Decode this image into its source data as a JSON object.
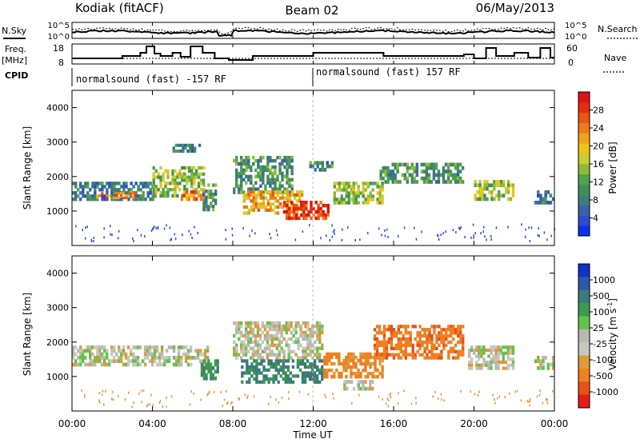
{
  "header": {
    "station": "Kodiak (fitACF)",
    "beam": "Beam 02",
    "date": "06/May/2013"
  },
  "strips": {
    "nsky_label": "N.Sky",
    "nsearch_label": "N.Search",
    "freq_label_1": "Freq.",
    "freq_label_2": "[MHz]",
    "nave_label": "Nave",
    "cpid_label": "CPID",
    "noise_ticks_left": [
      "10^5",
      "10^0"
    ],
    "noise_ticks_right": [
      "10^5",
      "10^0"
    ],
    "freq_ticks": [
      "18",
      "8"
    ],
    "nave_ticks": [
      "60",
      "0"
    ],
    "cpid_segments": [
      {
        "label": "normalsound (fast) -157 RF",
        "start_h": 0,
        "end_h": 12
      },
      {
        "label": "normalsound (fast) 157 RF",
        "start_h": 12,
        "end_h": 24
      }
    ]
  },
  "panels": {
    "yaxis_label": "Slant Range [km]",
    "y_ticks": [
      "1000",
      "2000",
      "3000",
      "4000"
    ],
    "x_ticks": [
      "00:00",
      "04:00",
      "08:00",
      "12:00",
      "16:00",
      "20:00",
      "00:00"
    ],
    "xaxis_label": "Time UT"
  },
  "colorbars": {
    "power": {
      "label": "Power [dB]",
      "ticks": [
        "4",
        "8",
        "12",
        "16",
        "20",
        "24",
        "28"
      ],
      "colors": [
        "#0b2ff0",
        "#2c4bd1",
        "#3a62a8",
        "#3f7b7a",
        "#3f8f5a",
        "#4fa24c",
        "#8dbb3a",
        "#c7cf31",
        "#f0c21c",
        "#f2a31b",
        "#ef7d17",
        "#ec5515",
        "#e82c12",
        "#e0120f"
      ]
    },
    "velocity": {
      "label": "Velocity [m s",
      "label_sup": "-1",
      "label_end": "]",
      "ticks": [
        "1000",
        "500",
        "100",
        "25",
        "-25",
        "-100",
        "-500",
        "-1000"
      ],
      "colors": [
        "#1034c8",
        "#2d5aa8",
        "#3c7a7a",
        "#3d9a4c",
        "#64c24a",
        "#b8b8b0",
        "#c9c8bf",
        "#e09a3a",
        "#ee8020",
        "#e8501a",
        "#e81c12"
      ]
    }
  },
  "chart_data": [
    {
      "type": "heatmap",
      "title": "Power [dB]",
      "xlabel": "Time UT",
      "ylabel": "Slant Range [km]",
      "xlim_hours": [
        0,
        24
      ],
      "ylim_km": [
        0,
        4500
      ],
      "color_range": [
        0,
        30
      ],
      "regions": [
        {
          "t0": 0.0,
          "t1": 4.2,
          "r0": 1300,
          "r1": 1850,
          "value": 8
        },
        {
          "t0": 1.2,
          "t1": 3.2,
          "r0": 1350,
          "r1": 1550,
          "value": 22
        },
        {
          "t0": 4.0,
          "t1": 6.6,
          "r0": 1400,
          "r1": 2300,
          "value": 14
        },
        {
          "t0": 5.4,
          "t1": 6.6,
          "r0": 1300,
          "r1": 1600,
          "value": 22
        },
        {
          "t0": 6.5,
          "t1": 7.2,
          "r0": 1000,
          "r1": 1800,
          "value": 10
        },
        {
          "t0": 5.0,
          "t1": 6.4,
          "r0": 2700,
          "r1": 2950,
          "value": 8
        },
        {
          "t0": 8.0,
          "t1": 11.0,
          "r0": 1500,
          "r1": 2600,
          "value": 10
        },
        {
          "t0": 8.5,
          "t1": 11.5,
          "r0": 900,
          "r1": 1600,
          "value": 20
        },
        {
          "t0": 10.5,
          "t1": 12.8,
          "r0": 750,
          "r1": 1300,
          "value": 27
        },
        {
          "t0": 11.8,
          "t1": 13.0,
          "r0": 2150,
          "r1": 2450,
          "value": 8
        },
        {
          "t0": 13.0,
          "t1": 15.5,
          "r0": 1200,
          "r1": 1850,
          "value": 14
        },
        {
          "t0": 15.3,
          "t1": 19.5,
          "r0": 1800,
          "r1": 2400,
          "value": 10
        },
        {
          "t0": 20.0,
          "t1": 22.0,
          "r0": 1300,
          "r1": 1900,
          "value": 14
        },
        {
          "t0": 23.0,
          "t1": 24.0,
          "r0": 1200,
          "r1": 1600,
          "value": 8
        }
      ]
    },
    {
      "type": "heatmap",
      "title": "Velocity [m s-1]",
      "xlabel": "Time UT",
      "ylabel": "Slant Range [km]",
      "xlim_hours": [
        0,
        24
      ],
      "ylim_km": [
        0,
        4500
      ],
      "color_range": [
        -1000,
        1000
      ],
      "regions": [
        {
          "t0": 0.0,
          "t1": 6.8,
          "r0": 1300,
          "r1": 1900,
          "value": 0
        },
        {
          "t0": 6.4,
          "t1": 7.3,
          "r0": 900,
          "r1": 1500,
          "value": 300
        },
        {
          "t0": 8.0,
          "t1": 12.5,
          "r0": 1500,
          "r1": 2600,
          "value": 0
        },
        {
          "t0": 8.4,
          "t1": 12.5,
          "r0": 800,
          "r1": 1500,
          "value": 400
        },
        {
          "t0": 12.5,
          "t1": 15.5,
          "r0": 950,
          "r1": 1700,
          "value": -250
        },
        {
          "t0": 15.0,
          "t1": 19.5,
          "r0": 1500,
          "r1": 2500,
          "value": -300
        },
        {
          "t0": 13.5,
          "t1": 15.0,
          "r0": 600,
          "r1": 900,
          "value": 0
        },
        {
          "t0": 19.7,
          "t1": 22.0,
          "r0": 1200,
          "r1": 1900,
          "value": 0
        },
        {
          "t0": 23.0,
          "t1": 24.0,
          "r0": 1200,
          "r1": 1600,
          "value": 0
        }
      ]
    }
  ]
}
